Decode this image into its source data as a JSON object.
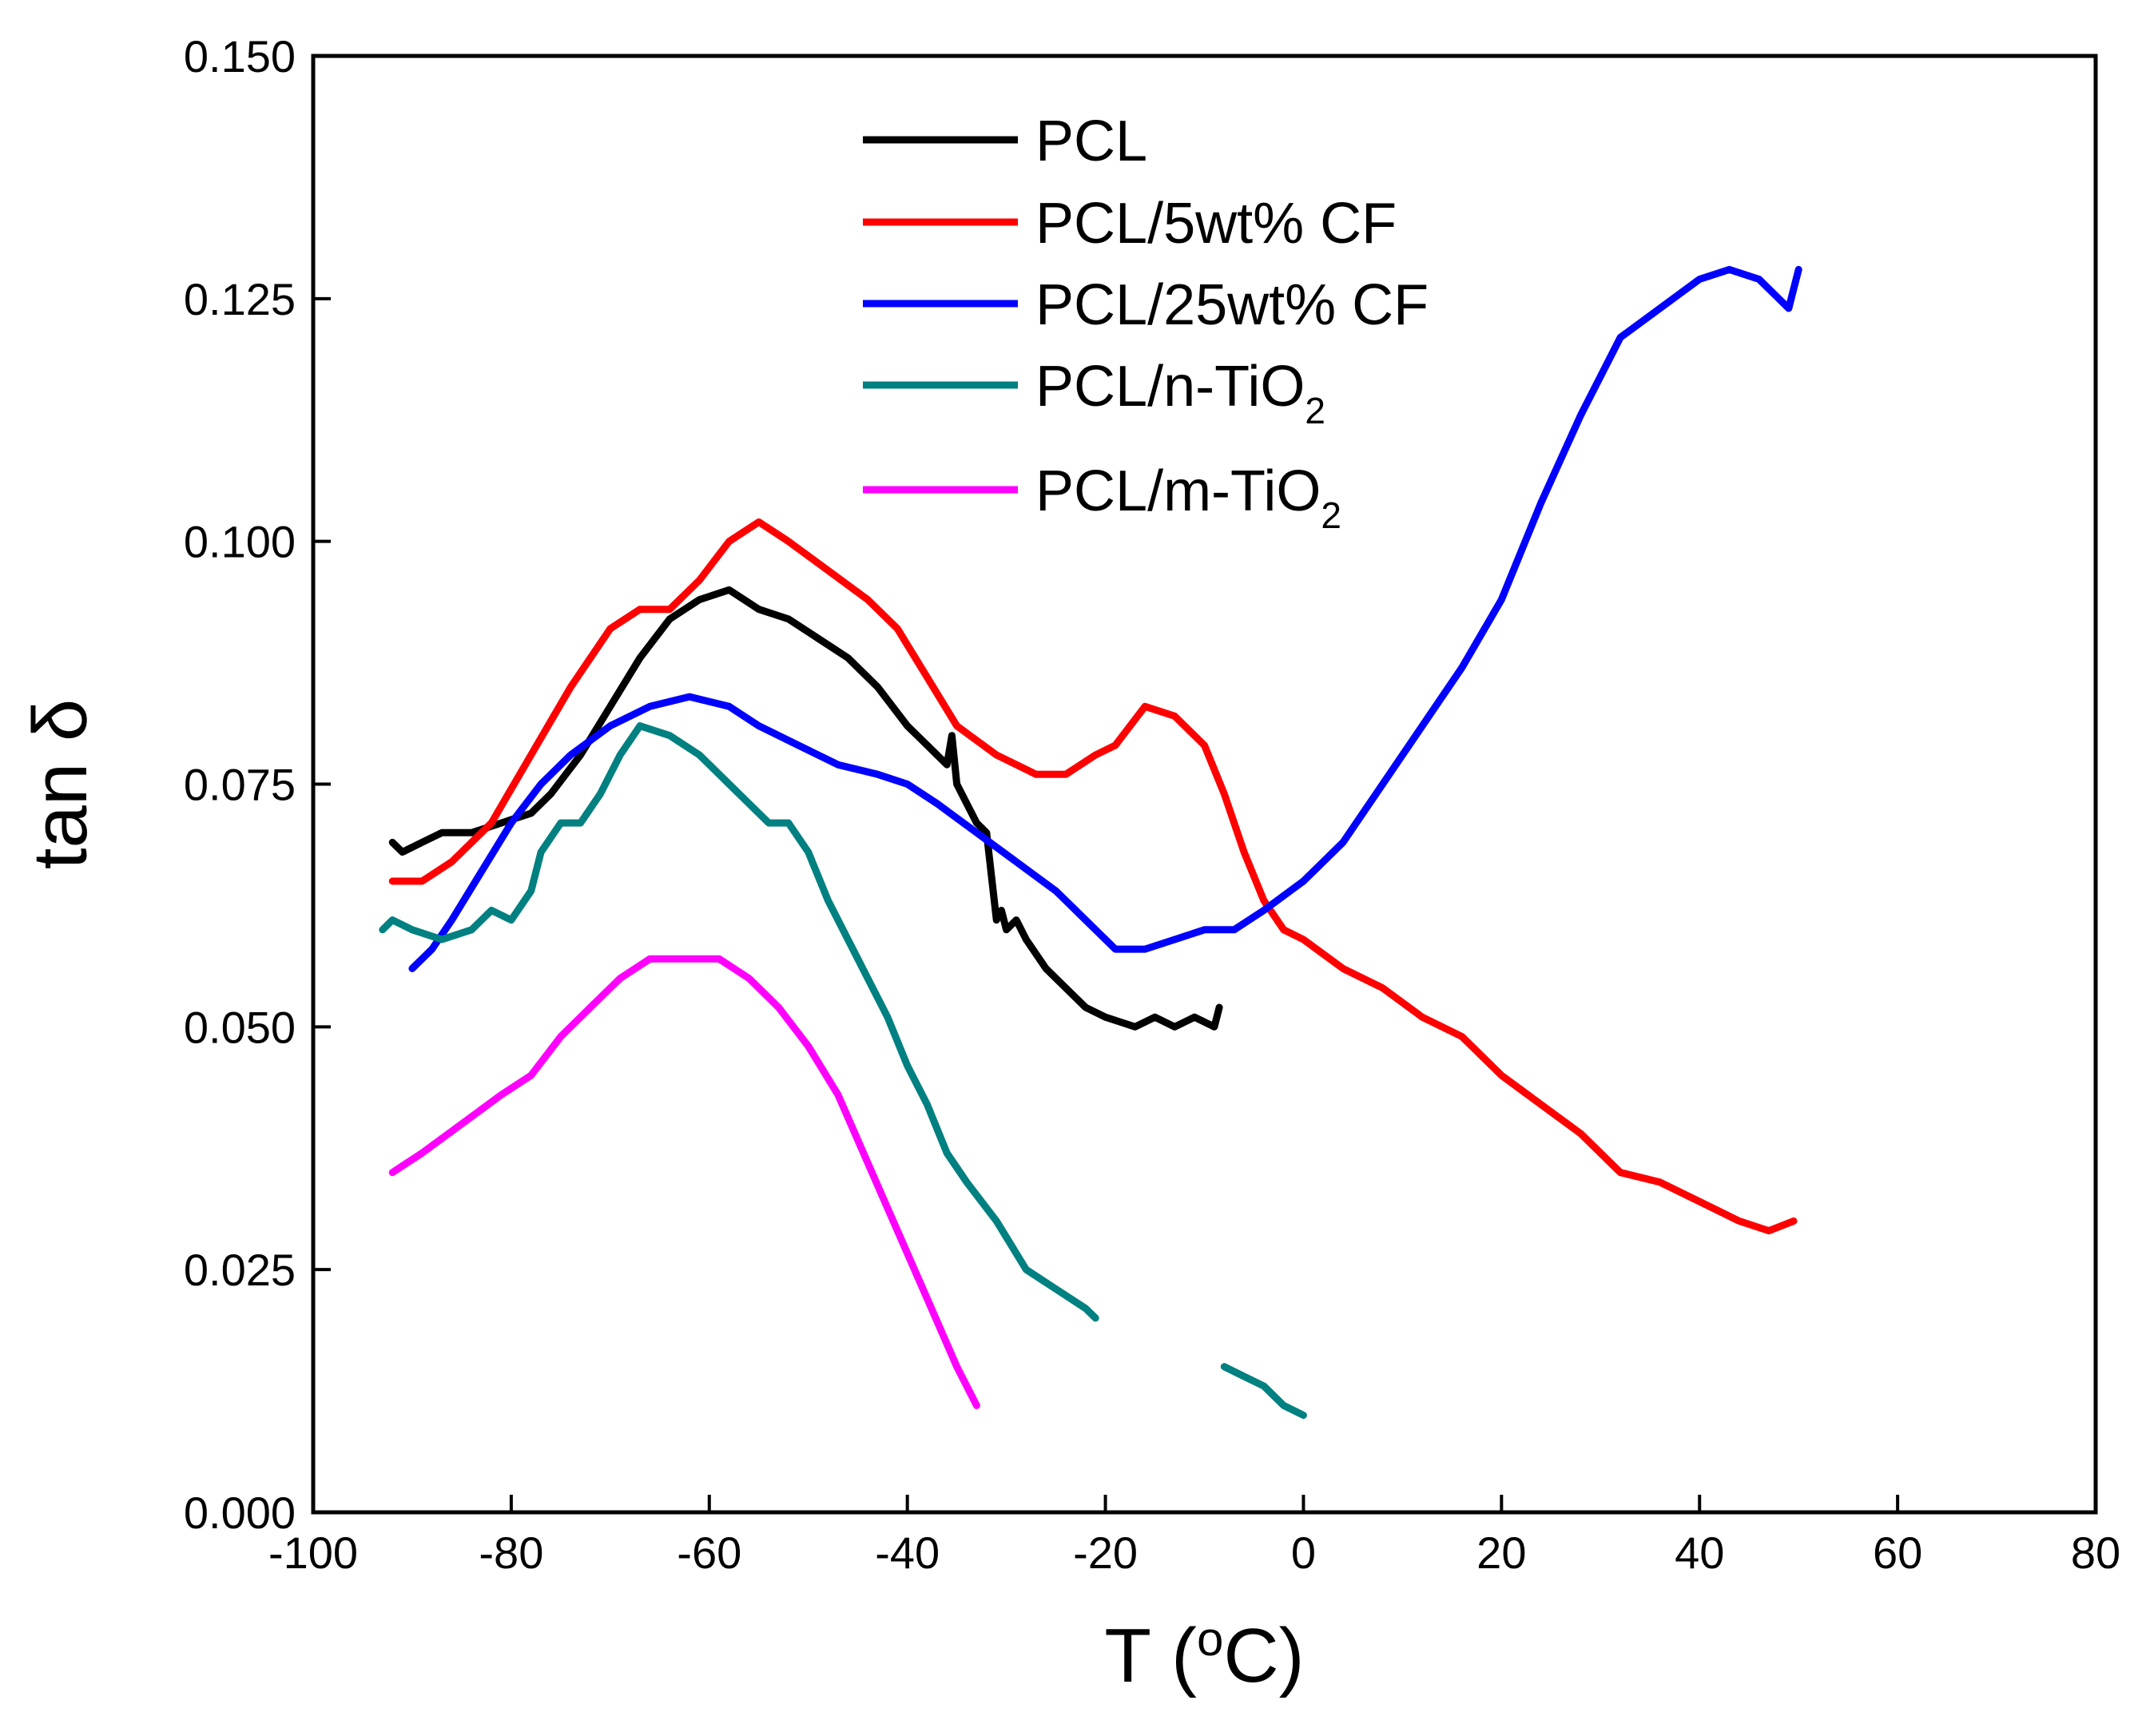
{
  "chart_data": {
    "type": "line",
    "title": "",
    "xlabel": "T (°C)",
    "xlabel_parts": {
      "prefix": "T (",
      "sup": "o",
      "suffix": "C)"
    },
    "ylabel": "tan δ",
    "xlim": [
      -100,
      80
    ],
    "ylim": [
      0.0,
      0.15
    ],
    "xticks": [
      -100,
      -80,
      -60,
      -40,
      -20,
      0,
      20,
      40,
      60,
      80
    ],
    "xtick_labels": [
      "-100",
      "-80",
      "-60",
      "-40",
      "-20",
      "0",
      "20",
      "40",
      "60",
      "80"
    ],
    "yticks": [
      0.0,
      0.025,
      0.05,
      0.075,
      0.1,
      0.125,
      0.15
    ],
    "ytick_labels": [
      "0.000",
      "0.025",
      "0.050",
      "0.075",
      "0.100",
      "0.125",
      "0.150"
    ],
    "grid": false,
    "legend_position": "top-center",
    "series": [
      {
        "name": "PCL",
        "label": "PCL",
        "color": "#000000",
        "points": [
          [
            -92,
            0.069
          ],
          [
            -91,
            0.068
          ],
          [
            -89,
            0.069
          ],
          [
            -87,
            0.07
          ],
          [
            -84,
            0.07
          ],
          [
            -81,
            0.071
          ],
          [
            -78,
            0.072
          ],
          [
            -76,
            0.074
          ],
          [
            -73,
            0.078
          ],
          [
            -70,
            0.083
          ],
          [
            -67,
            0.088
          ],
          [
            -64,
            0.092
          ],
          [
            -61,
            0.094
          ],
          [
            -58,
            0.095
          ],
          [
            -55,
            0.093
          ],
          [
            -52,
            0.092
          ],
          [
            -49,
            0.09
          ],
          [
            -46,
            0.088
          ],
          [
            -43,
            0.085
          ],
          [
            -40,
            0.081
          ],
          [
            -38,
            0.079
          ],
          [
            -36,
            0.077
          ],
          [
            -35.5,
            0.08
          ],
          [
            -35,
            0.075
          ],
          [
            -34,
            0.073
          ],
          [
            -33,
            0.071
          ],
          [
            -32,
            0.07
          ],
          [
            -31,
            0.061
          ],
          [
            -30.5,
            0.062
          ],
          [
            -30,
            0.06
          ],
          [
            -29,
            0.061
          ],
          [
            -28,
            0.059
          ],
          [
            -26,
            0.056
          ],
          [
            -24,
            0.054
          ],
          [
            -22,
            0.052
          ],
          [
            -20,
            0.051
          ],
          [
            -17,
            0.05
          ],
          [
            -15,
            0.051
          ],
          [
            -13,
            0.05
          ],
          [
            -11,
            0.051
          ],
          [
            -9,
            0.05
          ],
          [
            -8.5,
            0.052
          ]
        ]
      },
      {
        "name": "PCL/5wt% CF",
        "label": "PCL/5wt% CF",
        "color": "#ff0000",
        "points": [
          [
            -92,
            0.065
          ],
          [
            -89,
            0.065
          ],
          [
            -86,
            0.067
          ],
          [
            -82,
            0.071
          ],
          [
            -78,
            0.078
          ],
          [
            -74,
            0.085
          ],
          [
            -70,
            0.091
          ],
          [
            -67,
            0.093
          ],
          [
            -64,
            0.093
          ],
          [
            -61,
            0.096
          ],
          [
            -58,
            0.1
          ],
          [
            -55,
            0.102
          ],
          [
            -52,
            0.1
          ],
          [
            -48,
            0.097
          ],
          [
            -44,
            0.094
          ],
          [
            -41,
            0.091
          ],
          [
            -38,
            0.086
          ],
          [
            -35,
            0.081
          ],
          [
            -31,
            0.078
          ],
          [
            -27,
            0.076
          ],
          [
            -24,
            0.076
          ],
          [
            -21,
            0.078
          ],
          [
            -19,
            0.079
          ],
          [
            -16,
            0.083
          ],
          [
            -13,
            0.082
          ],
          [
            -10,
            0.079
          ],
          [
            -8,
            0.074
          ],
          [
            -6,
            0.068
          ],
          [
            -4,
            0.063
          ],
          [
            -2,
            0.06
          ],
          [
            0,
            0.059
          ],
          [
            4,
            0.056
          ],
          [
            8,
            0.054
          ],
          [
            12,
            0.051
          ],
          [
            16,
            0.049
          ],
          [
            20,
            0.045
          ],
          [
            24,
            0.042
          ],
          [
            28,
            0.039
          ],
          [
            32,
            0.035
          ],
          [
            36,
            0.034
          ],
          [
            40,
            0.032
          ],
          [
            44,
            0.03
          ],
          [
            47,
            0.029
          ],
          [
            49.5,
            0.03
          ]
        ]
      },
      {
        "name": "PCL/25wt% CF",
        "label": "PCL/25wt% CF",
        "color": "#0000ff",
        "points": [
          [
            -90,
            0.056
          ],
          [
            -88,
            0.058
          ],
          [
            -86,
            0.061
          ],
          [
            -83,
            0.066
          ],
          [
            -80,
            0.071
          ],
          [
            -77,
            0.075
          ],
          [
            -74,
            0.078
          ],
          [
            -70,
            0.081
          ],
          [
            -66,
            0.083
          ],
          [
            -62,
            0.084
          ],
          [
            -58,
            0.083
          ],
          [
            -55,
            0.081
          ],
          [
            -51,
            0.079
          ],
          [
            -47,
            0.077
          ],
          [
            -43,
            0.076
          ],
          [
            -40,
            0.075
          ],
          [
            -37,
            0.073
          ],
          [
            -33,
            0.07
          ],
          [
            -29,
            0.067
          ],
          [
            -25,
            0.064
          ],
          [
            -22,
            0.061
          ],
          [
            -19,
            0.058
          ],
          [
            -16,
            0.058
          ],
          [
            -13,
            0.059
          ],
          [
            -10,
            0.06
          ],
          [
            -7,
            0.06
          ],
          [
            -4,
            0.062
          ],
          [
            0,
            0.065
          ],
          [
            4,
            0.069
          ],
          [
            8,
            0.075
          ],
          [
            12,
            0.081
          ],
          [
            16,
            0.087
          ],
          [
            20,
            0.094
          ],
          [
            24,
            0.104
          ],
          [
            28,
            0.113
          ],
          [
            32,
            0.121
          ],
          [
            36,
            0.124
          ],
          [
            40,
            0.127
          ],
          [
            43,
            0.128
          ],
          [
            46,
            0.127
          ],
          [
            48,
            0.125
          ],
          [
            49,
            0.124
          ],
          [
            50,
            0.128
          ]
        ]
      },
      {
        "name": "PCL/n-TiO2",
        "label_main": "PCL/n-TiO",
        "label_sub": "2",
        "color": "#008080",
        "points": [
          [
            -93,
            0.06
          ],
          [
            -92,
            0.061
          ],
          [
            -90,
            0.06
          ],
          [
            -87,
            0.059
          ],
          [
            -84,
            0.06
          ],
          [
            -82,
            0.062
          ],
          [
            -80,
            0.061
          ],
          [
            -78,
            0.064
          ],
          [
            -77,
            0.068
          ],
          [
            -75,
            0.071
          ],
          [
            -73,
            0.071
          ],
          [
            -71,
            0.074
          ],
          [
            -69,
            0.078
          ],
          [
            -67,
            0.081
          ],
          [
            -64,
            0.08
          ],
          [
            -61,
            0.078
          ],
          [
            -58,
            0.075
          ],
          [
            -56,
            0.073
          ],
          [
            -54,
            0.071
          ],
          [
            -52,
            0.071
          ],
          [
            -50,
            0.068
          ],
          [
            -48,
            0.063
          ],
          [
            -45,
            0.057
          ],
          [
            -42,
            0.051
          ],
          [
            -40,
            0.046
          ],
          [
            -38,
            0.042
          ],
          [
            -36,
            0.037
          ],
          [
            -34,
            0.034
          ],
          [
            -31,
            0.03
          ],
          [
            -28,
            0.025
          ],
          [
            -25,
            0.023
          ],
          [
            -22,
            0.021
          ],
          [
            -21,
            0.02
          ],
          null,
          [
            -8,
            0.015
          ],
          [
            -6,
            0.014
          ],
          [
            -4,
            0.013
          ],
          [
            -2,
            0.011
          ],
          [
            0,
            0.01
          ]
        ]
      },
      {
        "name": "PCL/m-TiO2",
        "label_main": "PCL/m-TiO",
        "label_sub": "2",
        "color": "#ff00ff",
        "points": [
          [
            -92,
            0.035
          ],
          [
            -89,
            0.037
          ],
          [
            -85,
            0.04
          ],
          [
            -81,
            0.043
          ],
          [
            -78,
            0.045
          ],
          [
            -75,
            0.049
          ],
          [
            -72,
            0.052
          ],
          [
            -69,
            0.055
          ],
          [
            -66,
            0.057
          ],
          [
            -62,
            0.057
          ],
          [
            -59,
            0.057
          ],
          [
            -56,
            0.055
          ],
          [
            -53,
            0.052
          ],
          [
            -50,
            0.048
          ],
          [
            -47,
            0.043
          ],
          [
            -44,
            0.036
          ],
          [
            -41,
            0.029
          ],
          [
            -38,
            0.022
          ],
          [
            -35,
            0.015
          ],
          [
            -33,
            0.011
          ]
        ]
      }
    ]
  }
}
